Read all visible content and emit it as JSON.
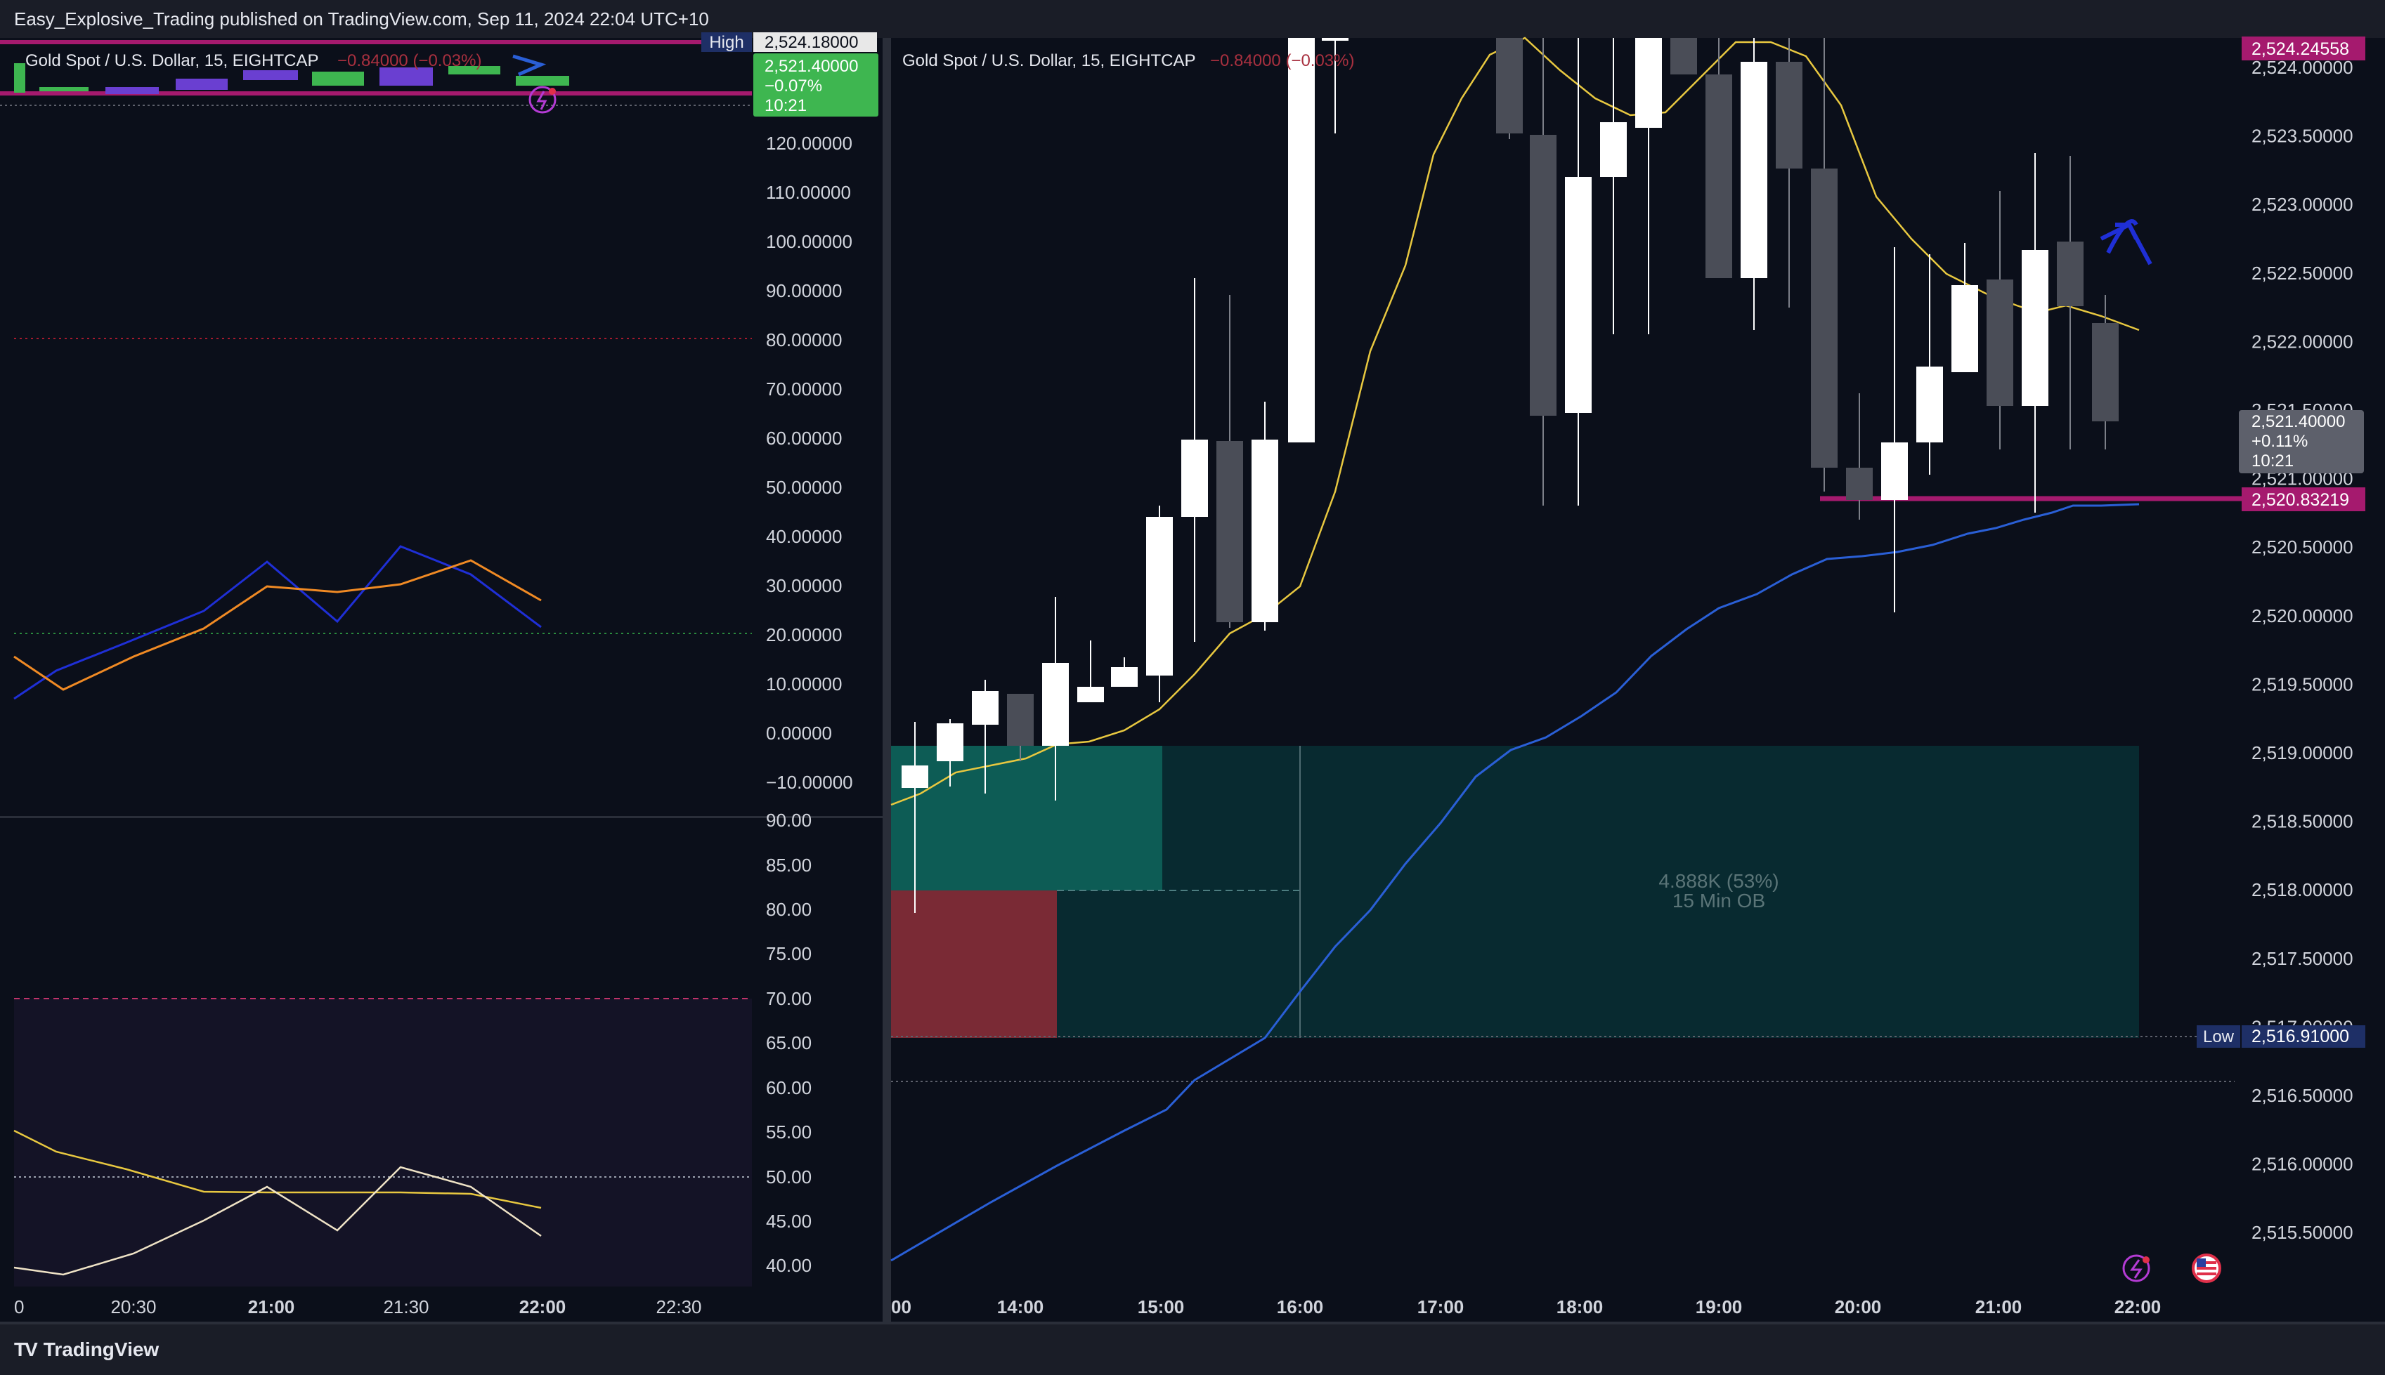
{
  "header": {
    "publisher_line": "Easy_Explosive_Trading published on TradingView.com, Sep 11, 2024 22:04 UTC+10"
  },
  "footer": {
    "brand": "TradingView"
  },
  "left_price_pane": {
    "symbol": "Gold Spot / U.S. Dollar, 15, EIGHTCAP",
    "change": "−0.84000 (−0.03%)",
    "high_tag": "High",
    "high_value": "2,524.18000",
    "last_price": "2,521.40000",
    "last_change": "−0.07%",
    "countdown": "10:21"
  },
  "left_osc1": {
    "axis_labels": [
      "120.00000",
      "110.00000",
      "100.00000",
      "90.00000",
      "80.00000",
      "70.00000",
      "60.00000",
      "50.00000",
      "40.00000",
      "30.00000",
      "20.00000",
      "10.00000",
      "0.00000",
      "−10.00000"
    ]
  },
  "left_osc2": {
    "axis_labels": [
      "90.00",
      "85.00",
      "80.00",
      "75.00",
      "70.00",
      "65.00",
      "60.00",
      "55.00",
      "50.00",
      "45.00",
      "40.00"
    ]
  },
  "left_time_axis": [
    "0",
    "20:30",
    "21:00",
    "21:30",
    "22:00",
    "22:30"
  ],
  "right_pane": {
    "symbol": "Gold Spot / U.S. Dollar, 15, EIGHTCAP",
    "change": "−0.84000 (−0.03%)",
    "axis_labels": [
      "2,524.00000",
      "2,523.50000",
      "2,523.00000",
      "2,522.50000",
      "2,522.00000",
      "2,521.50000",
      "2,521.00000",
      "2,520.50000",
      "2,520.00000",
      "2,519.50000",
      "2,519.00000",
      "2,518.50000",
      "2,518.00000",
      "2,517.50000",
      "2,517.00000",
      "2,516.50000",
      "2,516.00000",
      "2,515.50000"
    ],
    "top_tag": "2,524.24558",
    "last_price": "2,521.40000",
    "last_change": "+0.11%",
    "countdown": "10:21",
    "level_tag": "2,520.83219",
    "low_tag": "Low",
    "low_value": "2,516.91000",
    "ob_volume": "4.888K (53%)",
    "ob_label": "15 Min OB",
    "time_axis": [
      "00",
      "14:00",
      "15:00",
      "16:00",
      "17:00",
      "18:00",
      "19:00",
      "20:00",
      "21:00",
      "22:00"
    ]
  },
  "icons": [
    "lightning-icon",
    "us-flag-icon",
    "arrow-up-icon"
  ],
  "colors": {
    "background": "#0b0f1a",
    "bull_candle": "#ffffff",
    "bear_candle": "#4a4d57",
    "ob_green": "#0d5c55",
    "ob_red": "#7a2a35",
    "ob_zone": "#082a30",
    "magenta_line": "#a51a6e",
    "ema_blue": "#2a5fd6",
    "ema_yellow": "#e8c840",
    "last_price_green": "#3eb650",
    "tag_grey": "#5d606b"
  }
}
